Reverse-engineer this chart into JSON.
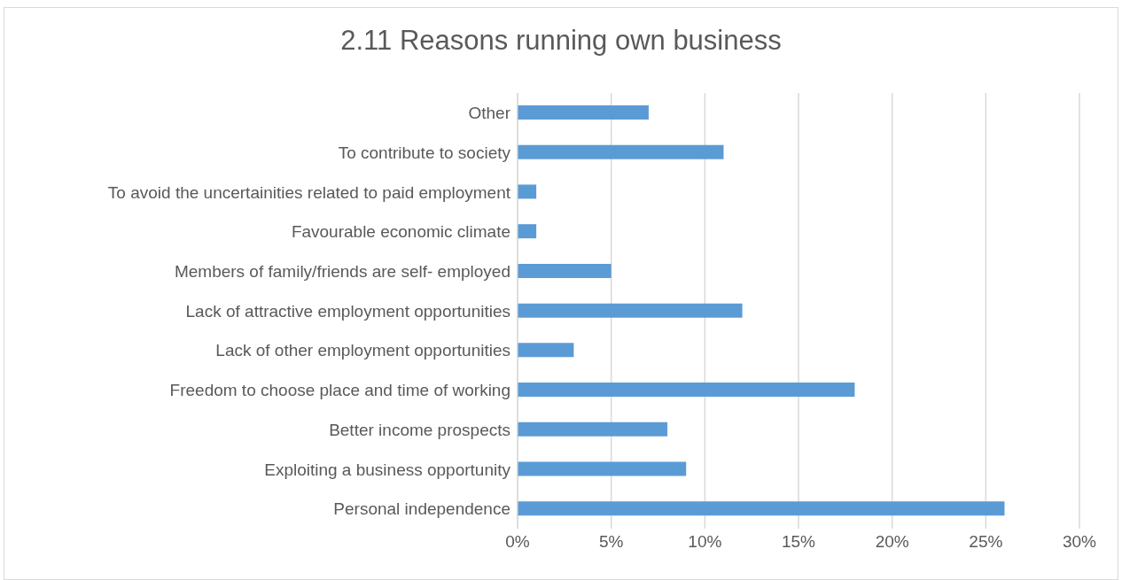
{
  "chart_data": {
    "type": "bar",
    "orientation": "horizontal",
    "title": "2.11 Reasons running own business",
    "categories": [
      "Other",
      "To contribute to society",
      "To avoid the uncertainities related to paid employment",
      "Favourable economic climate",
      "Members of family/friends are self- employed",
      "Lack of attractive employment opportunities",
      "Lack of other employment opportunities",
      "Freedom to choose place and time of working",
      "Better income prospects",
      "Exploiting a business opportunity",
      "Personal independence"
    ],
    "values": [
      7,
      11,
      1,
      1,
      5,
      12,
      3,
      18,
      8,
      9,
      26
    ],
    "color": "#5b9bd5",
    "xlim": [
      0,
      30
    ],
    "xticks": [
      {
        "value": 0,
        "label": "0%"
      },
      {
        "value": 5,
        "label": "5%"
      },
      {
        "value": 10,
        "label": "10%"
      },
      {
        "value": 15,
        "label": "15%"
      },
      {
        "value": 20,
        "label": "20%"
      },
      {
        "value": 25,
        "label": "25%"
      },
      {
        "value": 30,
        "label": "30%"
      }
    ],
    "grid": "x",
    "legend": false
  }
}
